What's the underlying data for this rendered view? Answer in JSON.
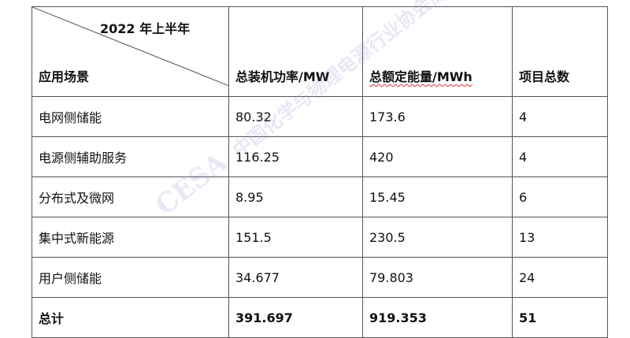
{
  "table": {
    "corner_top": "2022 年上半年",
    "corner_bottom": "应用场景",
    "headers": [
      "总装机功率/MW",
      "总额定能量/MWh",
      "项目总数"
    ],
    "rows": [
      [
        "电网侧储能",
        "80.32",
        "173.6",
        "4"
      ],
      [
        "电源侧辅助服务",
        "116.25",
        "420",
        "4"
      ],
      [
        "分布式及微网",
        "8.95",
        "15.45",
        "6"
      ],
      [
        "集中式新能源",
        "151.5",
        "230.5",
        "13"
      ],
      [
        "用户侧储能",
        "34.677",
        "79.803",
        "24"
      ]
    ],
    "total": [
      "总计",
      "391.697",
      "919.353",
      "51"
    ]
  },
  "watermark": {
    "logo": "CESA",
    "text": "中国化学与物理电源行业协会储能应用分会"
  }
}
